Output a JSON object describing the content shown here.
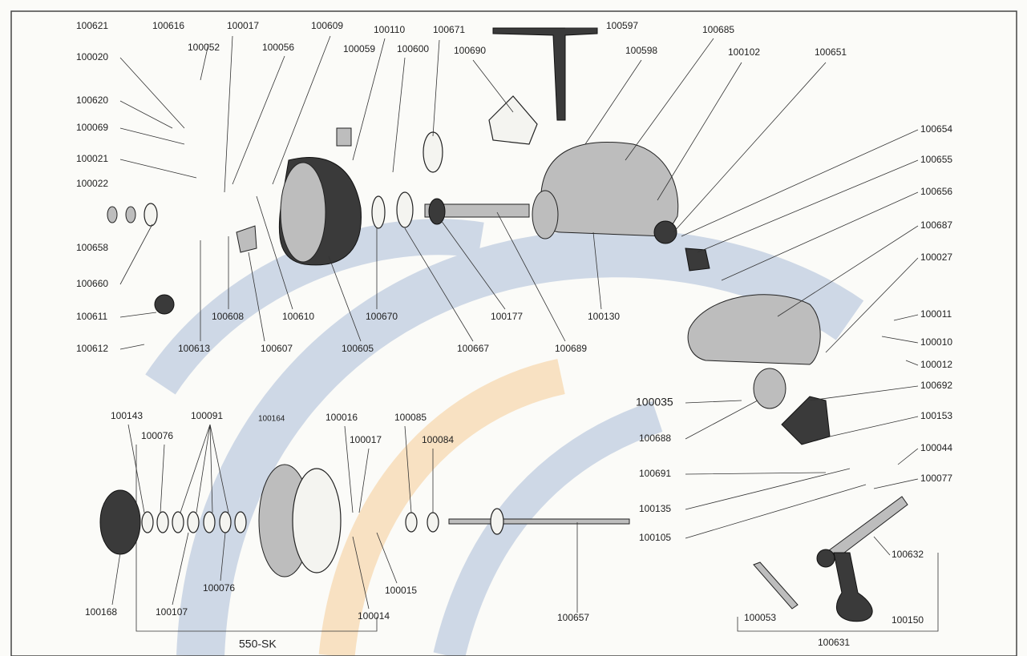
{
  "labels": [
    "100621",
    "100616",
    "100017",
    "100609",
    "100110",
    "100671",
    "100597",
    "100685",
    "100052",
    "100056",
    "100059",
    "100600",
    "100690",
    "100598",
    "100102",
    "100651",
    "100020",
    "100620",
    "100069",
    "100021",
    "100022",
    "100658",
    "100660",
    "100611",
    "100612",
    "100613",
    "100608",
    "100610",
    "100607",
    "100605",
    "100670",
    "100667",
    "100177",
    "100689",
    "100130",
    "100654",
    "100655",
    "100656",
    "100687",
    "100027",
    "100011",
    "100010",
    "100012",
    "100692",
    "100153",
    "100044",
    "100077",
    "100632",
    "100150",
    "100631",
    "100053",
    "100035",
    "100688",
    "100691",
    "100135",
    "100105",
    "100143",
    "100091",
    "100164",
    "100016",
    "100085",
    "100076",
    "100017",
    "100084",
    "100168",
    "100107",
    "100076",
    "100015",
    "100014",
    "100657",
    "550-SK"
  ]
}
